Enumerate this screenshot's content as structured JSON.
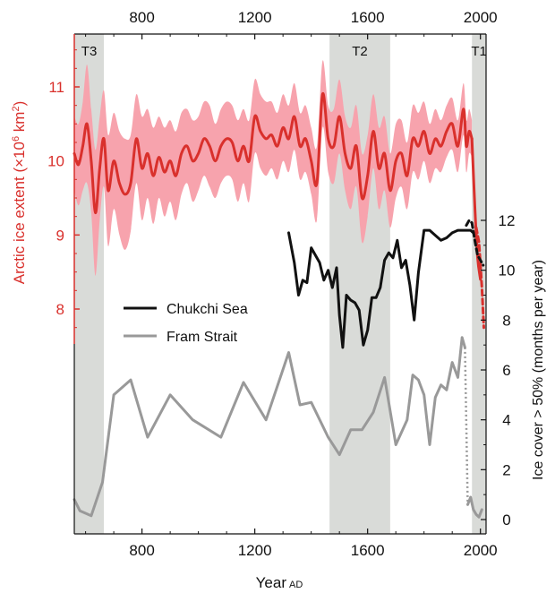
{
  "chart_data": {
    "type": "line",
    "xlabel": "Year",
    "xlabel_suffix": "AD",
    "xlim": [
      560,
      2020
    ],
    "x_ticks": [
      800,
      1200,
      1600,
      2000
    ],
    "left_axis": {
      "label": "Arctic ice extent (×10",
      "label_sup": "6",
      "label_tail": " km",
      "label_sup2": "2",
      "label_end": ")",
      "ylim": [
        7.5,
        11.7
      ],
      "ticks": [
        8,
        9,
        10,
        11
      ],
      "color": "#d9302c"
    },
    "right_axis": {
      "label": "Ice cover > 50% (months per year)",
      "ylim": [
        -0.25,
        12.3
      ],
      "ticks": [
        0,
        2,
        4,
        6,
        8,
        10,
        12
      ]
    },
    "shaded_periods": [
      {
        "label": "T3",
        "start": 560,
        "end": 665
      },
      {
        "label": "T2",
        "start": 1465,
        "end": 1680
      },
      {
        "label": "T1",
        "start": 1970,
        "end": 2020
      }
    ],
    "legend": [
      {
        "name": "Chukchi Sea",
        "color": "#111111"
      },
      {
        "name": "Fram Strait",
        "color": "#999999"
      }
    ],
    "series": [
      {
        "name": "Arctic ice extent",
        "axis": "left",
        "color": "#d9302c",
        "band_color": "#f7a3ad",
        "x": [
          560,
          575,
          590,
          605,
          620,
          635,
          650,
          665,
          680,
          700,
          720,
          740,
          760,
          780,
          800,
          820,
          840,
          860,
          880,
          900,
          920,
          940,
          960,
          980,
          1000,
          1020,
          1040,
          1060,
          1080,
          1100,
          1120,
          1140,
          1160,
          1180,
          1200,
          1220,
          1240,
          1260,
          1280,
          1300,
          1320,
          1340,
          1360,
          1380,
          1400,
          1420,
          1440,
          1460,
          1480,
          1500,
          1520,
          1540,
          1560,
          1580,
          1600,
          1620,
          1640,
          1660,
          1680,
          1700,
          1720,
          1740,
          1760,
          1780,
          1800,
          1820,
          1840,
          1860,
          1880,
          1900,
          1920,
          1940,
          1950,
          1960,
          1970
        ],
        "values": [
          10.1,
          9.95,
          10.2,
          10.5,
          10.0,
          9.3,
          9.9,
          10.3,
          9.6,
          10.0,
          9.7,
          9.55,
          9.7,
          10.3,
          9.9,
          10.1,
          9.8,
          10.05,
          9.85,
          10.0,
          9.8,
          10.1,
          10.2,
          10.0,
          10.1,
          10.3,
          10.2,
          10.0,
          10.2,
          10.3,
          10.25,
          10.0,
          10.2,
          10.0,
          10.6,
          10.4,
          10.3,
          10.35,
          10.2,
          10.45,
          10.3,
          10.6,
          10.2,
          10.3,
          10.0,
          9.7,
          10.9,
          10.3,
          10.2,
          10.6,
          10.1,
          9.9,
          10.2,
          9.5,
          9.8,
          10.4,
          9.9,
          10.1,
          9.6,
          10.0,
          10.1,
          9.8,
          10.3,
          10.2,
          10.4,
          10.1,
          10.3,
          10.2,
          10.4,
          10.5,
          10.2,
          10.7,
          10.2,
          10.4,
          10.3
        ],
        "band_halfwidth": [
          0.5,
          0.55,
          0.6,
          0.8,
          0.7,
          0.85,
          0.7,
          0.65,
          0.75,
          0.65,
          0.7,
          0.75,
          0.65,
          0.6,
          0.7,
          0.6,
          0.65,
          0.55,
          0.6,
          0.55,
          0.6,
          0.55,
          0.5,
          0.55,
          0.5,
          0.5,
          0.55,
          0.5,
          0.5,
          0.5,
          0.5,
          0.55,
          0.5,
          0.55,
          0.5,
          0.5,
          0.5,
          0.45,
          0.45,
          0.45,
          0.45,
          0.45,
          0.45,
          0.45,
          0.45,
          0.5,
          0.45,
          0.45,
          0.5,
          0.5,
          0.5,
          0.55,
          0.55,
          0.6,
          0.55,
          0.5,
          0.55,
          0.5,
          0.5,
          0.5,
          0.45,
          0.45,
          0.45,
          0.45,
          0.4,
          0.4,
          0.4,
          0.35,
          0.35,
          0.35,
          0.35,
          0.35,
          0.35,
          0.3,
          0.25
        ]
      },
      {
        "name": "Arctic ice extent (recent)",
        "axis": "left",
        "color": "#d9302c",
        "x": [
          1970,
          1980,
          1990,
          2000
        ],
        "values": [
          10.3,
          9.4,
          8.7,
          8.4
        ]
      },
      {
        "name": "Arctic ice extent (observed)",
        "axis": "left",
        "color": "#d9302c",
        "dashed": true,
        "x": [
          1985,
          1995,
          2005,
          2012
        ],
        "values": [
          9.1,
          8.9,
          8.3,
          7.75
        ]
      },
      {
        "name": "Chukchi Sea",
        "axis": "right",
        "color": "#111111",
        "x": [
          1320,
          1340,
          1355,
          1370,
          1385,
          1400,
          1415,
          1430,
          1445,
          1460,
          1475,
          1490,
          1500,
          1512,
          1525,
          1540,
          1555,
          1570,
          1585,
          1600,
          1615,
          1630,
          1645,
          1660,
          1675,
          1690,
          1705,
          1720,
          1735,
          1750,
          1765,
          1780,
          1800,
          1820,
          1840,
          1860,
          1880,
          1900,
          1920,
          1940,
          1955,
          1965,
          1975
        ],
        "values": [
          11.5,
          10.3,
          9.0,
          9.6,
          9.5,
          10.9,
          10.6,
          10.3,
          9.6,
          10.0,
          9.3,
          10.1,
          8.2,
          6.9,
          9.0,
          8.8,
          8.7,
          8.4,
          7.0,
          7.6,
          8.9,
          8.9,
          9.3,
          10.4,
          10.7,
          10.5,
          11.2,
          10.1,
          10.4,
          9.4,
          8.0,
          9.9,
          11.6,
          11.6,
          11.4,
          11.2,
          11.3,
          11.5,
          11.6,
          11.6,
          11.6,
          11.6,
          11.5
        ]
      },
      {
        "name": "Chukchi Sea (observed)",
        "axis": "right",
        "color": "#111111",
        "dashed": true,
        "x": [
          1950,
          1960,
          1970,
          1980,
          1990,
          2000,
          2010
        ],
        "values": [
          11.8,
          12.0,
          11.9,
          11.2,
          10.6,
          10.4,
          10.2
        ]
      },
      {
        "name": "Fram Strait",
        "axis": "right",
        "color": "#999999",
        "x": [
          560,
          580,
          620,
          660,
          700,
          760,
          820,
          900,
          980,
          1080,
          1160,
          1240,
          1320,
          1360,
          1400,
          1460,
          1500,
          1540,
          1580,
          1620,
          1660,
          1700,
          1740,
          1760,
          1780,
          1800,
          1820,
          1840,
          1860,
          1880,
          1900,
          1920,
          1935,
          1945
        ],
        "values": [
          0.8,
          0.35,
          0.15,
          1.5,
          5.0,
          5.6,
          3.3,
          5.0,
          4.0,
          3.3,
          5.5,
          4.0,
          6.7,
          4.6,
          4.7,
          3.3,
          2.6,
          3.6,
          3.6,
          4.3,
          5.7,
          3.0,
          4.0,
          5.8,
          5.6,
          5.0,
          3.0,
          4.9,
          5.4,
          5.2,
          6.3,
          5.7,
          7.3,
          6.9
        ]
      },
      {
        "name": "Fram Strait (transition)",
        "axis": "right",
        "color": "#999999",
        "dotted": true,
        "x": [
          1945,
          1955
        ],
        "values": [
          6.9,
          0.6
        ]
      },
      {
        "name": "Fram Strait (observed)",
        "axis": "right",
        "color": "#999999",
        "x": [
          1955,
          1965,
          1975,
          1985,
          1995,
          2005
        ],
        "values": [
          0.6,
          0.9,
          0.4,
          0.2,
          0.1,
          0.4
        ]
      }
    ]
  }
}
